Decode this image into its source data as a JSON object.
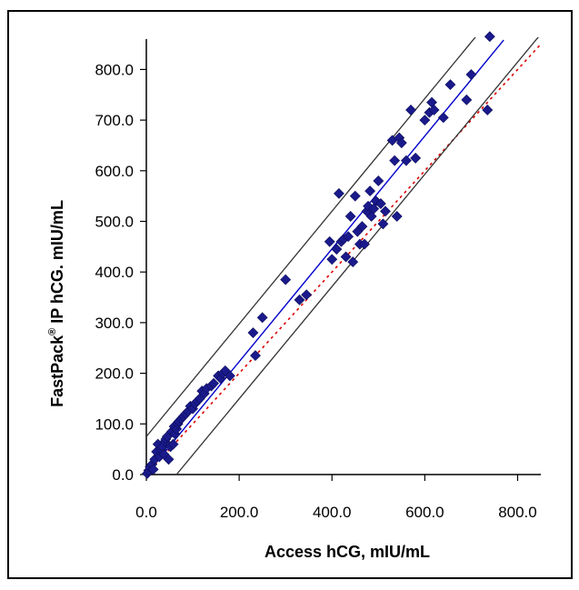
{
  "chart_data": {
    "type": "scatter",
    "title": "",
    "xlabel": "Access hCG, mIU/mL",
    "ylabel_main": "FastPack",
    "ylabel_sup": "®",
    "ylabel_rest": " IP hCG. mIU/mL",
    "xlim": [
      0,
      850
    ],
    "ylim": [
      0,
      860
    ],
    "x_ticks": [
      "0.0",
      "200.0",
      "400.0",
      "600.0",
      "800.0"
    ],
    "x_tick_values": [
      0,
      200,
      400,
      600,
      800
    ],
    "y_ticks": [
      "0.0",
      "100.0",
      "200.0",
      "300.0",
      "400.0",
      "500.0",
      "600.0",
      "700.0",
      "800.0"
    ],
    "y_tick_values": [
      0,
      100,
      200,
      300,
      400,
      500,
      600,
      700,
      800
    ],
    "grid": false,
    "legend": "none",
    "points": {
      "x": [
        2,
        5,
        8,
        12,
        15,
        18,
        22,
        25,
        28,
        32,
        35,
        38,
        40,
        42,
        45,
        48,
        52,
        55,
        58,
        60,
        62,
        65,
        68,
        70,
        75,
        80,
        85,
        90,
        95,
        100,
        105,
        110,
        115,
        120,
        125,
        130,
        140,
        145,
        155,
        160,
        165,
        170,
        180,
        230,
        235,
        250,
        300,
        330,
        345,
        395,
        400,
        410,
        415,
        420,
        425,
        430,
        435,
        440,
        445,
        450,
        455,
        460,
        465,
        470,
        475,
        478,
        482,
        485,
        490,
        495,
        500,
        505,
        510,
        515,
        530,
        535,
        540,
        545,
        550,
        560,
        570,
        580,
        600,
        610,
        615,
        620,
        640,
        655,
        690,
        700,
        735,
        740
      ],
      "y": [
        2,
        8,
        15,
        20,
        10,
        30,
        45,
        60,
        35,
        50,
        55,
        40,
        65,
        70,
        75,
        30,
        55,
        85,
        60,
        95,
        80,
        90,
        100,
        105,
        110,
        115,
        120,
        125,
        135,
        130,
        140,
        145,
        150,
        165,
        160,
        170,
        175,
        180,
        195,
        190,
        200,
        205,
        195,
        280,
        235,
        310,
        385,
        345,
        355,
        460,
        425,
        445,
        555,
        460,
        465,
        430,
        470,
        510,
        420,
        550,
        480,
        455,
        490,
        455,
        520,
        530,
        560,
        510,
        525,
        540,
        580,
        535,
        495,
        520,
        660,
        620,
        510,
        665,
        655,
        620,
        720,
        625,
        700,
        715,
        735,
        720,
        705,
        770,
        740,
        790,
        720,
        865
      ],
      "color": "#1a1a8c"
    },
    "lines": [
      {
        "role": "fit",
        "color": "#0000cc",
        "style": "solid",
        "x": [
          0,
          770
        ],
        "y": [
          0,
          858
        ]
      },
      {
        "role": "identity",
        "color": "#dd0000",
        "style": "dotted",
        "x": [
          0,
          850
        ],
        "y": [
          0,
          850
        ]
      },
      {
        "role": "upper-limit",
        "color": "#333333",
        "style": "solid",
        "x": [
          0,
          710
        ],
        "y": [
          75,
          865
        ]
      },
      {
        "role": "lower-limit",
        "color": "#333333",
        "style": "solid",
        "x": [
          65,
          850
        ],
        "y": [
          0,
          870
        ]
      }
    ]
  }
}
